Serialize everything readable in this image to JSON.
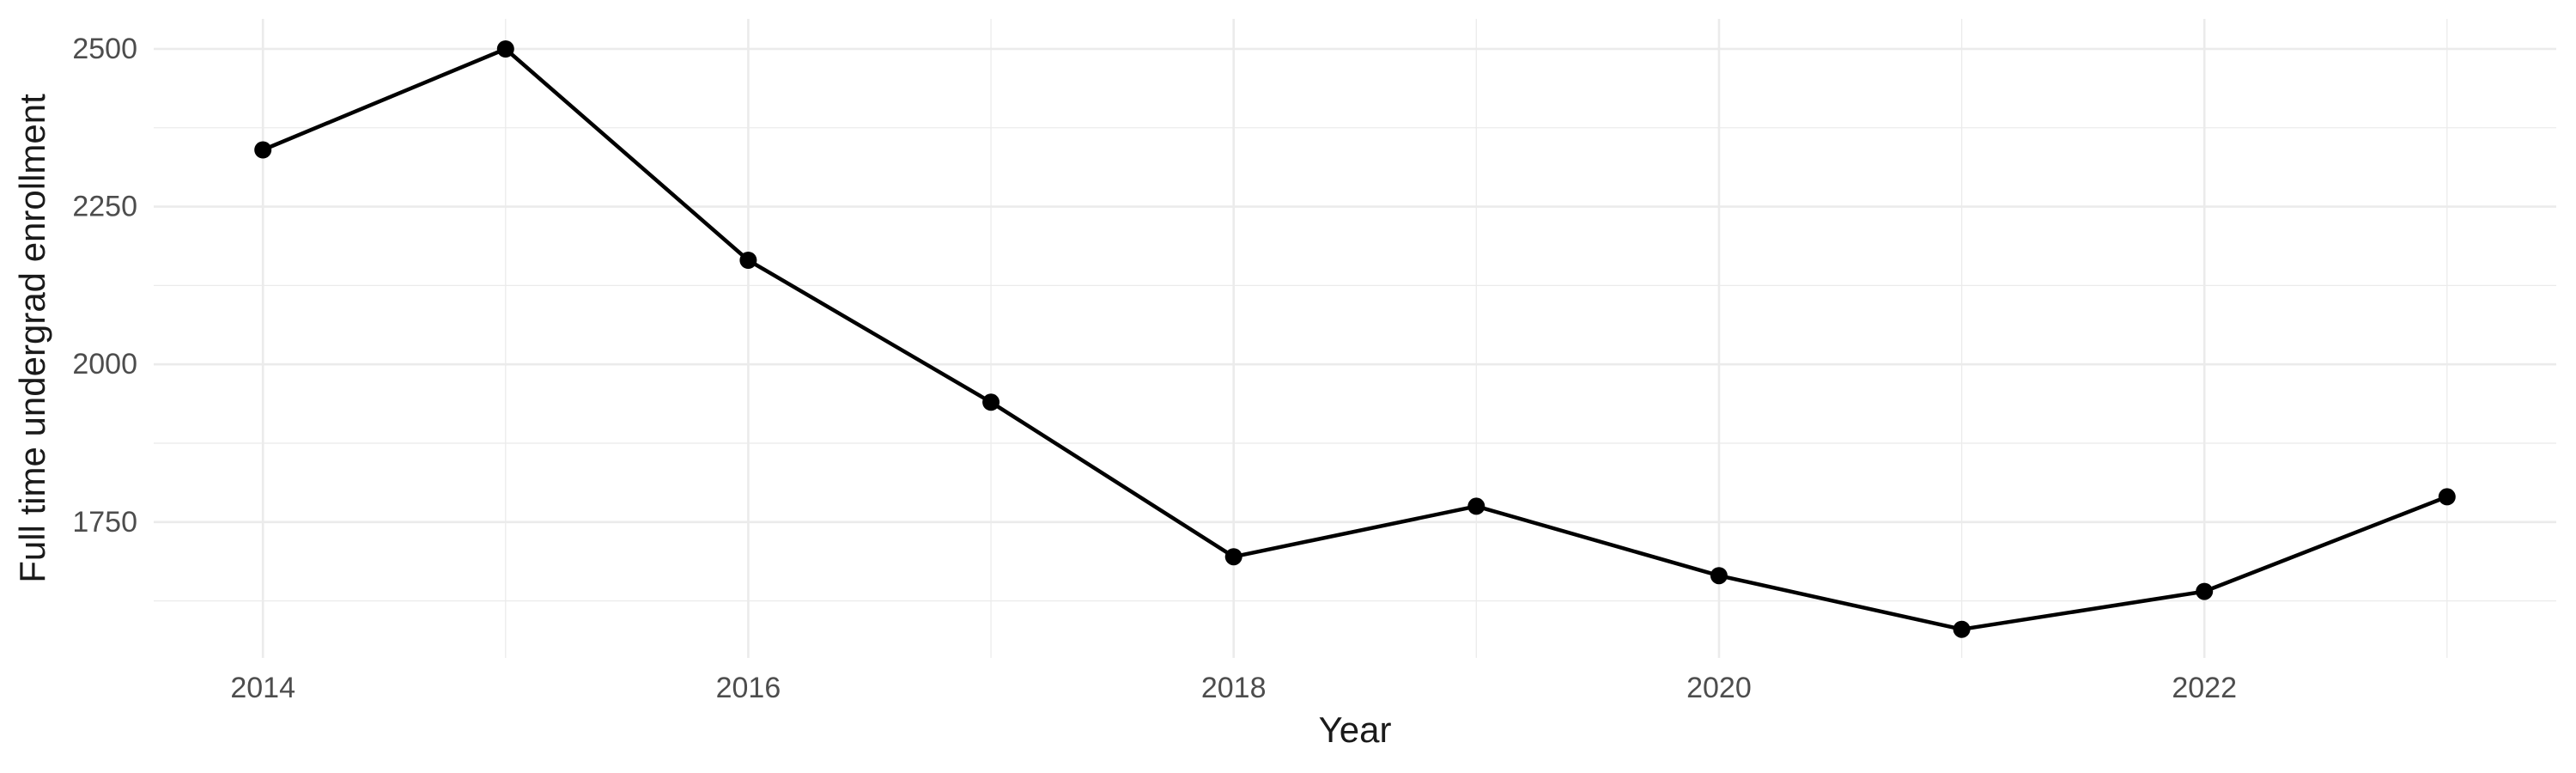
{
  "chart_data": {
    "type": "line",
    "title": "",
    "xlabel": "Year",
    "ylabel": "Full time undergrad enrollment",
    "series": [
      {
        "name": "Full time undergrad enrollment",
        "x": [
          2014,
          2015,
          2016,
          2017,
          2018,
          2019,
          2020,
          2021,
          2022,
          2023
        ],
        "values": [
          2340,
          2500,
          2165,
          1940,
          1695,
          1775,
          1665,
          1580,
          1640,
          1790
        ]
      }
    ],
    "x_ticks": [
      2014,
      2016,
      2018,
      2020,
      2022
    ],
    "y_ticks": [
      1750,
      2000,
      2250,
      2500
    ],
    "x_minor_gridlines": [
      2015,
      2017,
      2019,
      2021,
      2023
    ],
    "y_minor_gridlines": [
      1625,
      1875,
      2125,
      2375
    ],
    "xlim": [
      2013.55,
      2023.45
    ],
    "ylim": [
      1534.6,
      2547.6
    ],
    "grid": "major+minor",
    "legend": "none",
    "marker": "point",
    "colors": {
      "line": "#000000",
      "point": "#000000",
      "major_grid": "#ebebeb",
      "minor_grid": "#ebebeb",
      "tick_label": "#4d4d4d",
      "axis_title": "#1a1a1a",
      "background": "#ffffff"
    }
  }
}
